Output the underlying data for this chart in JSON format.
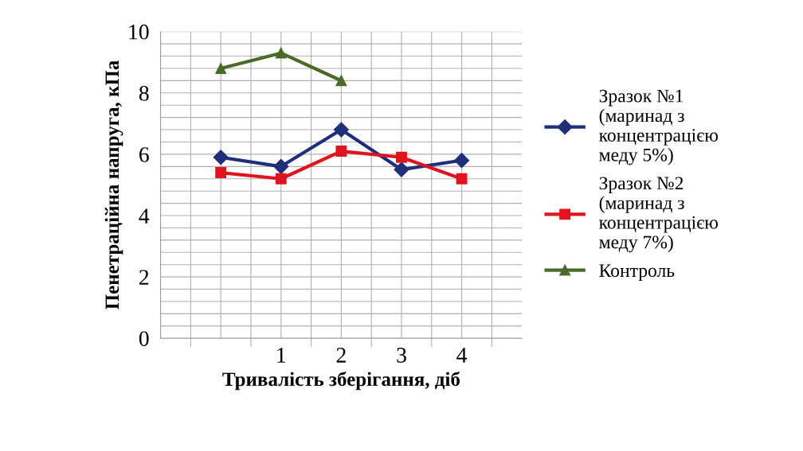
{
  "chart_data": {
    "type": "line",
    "xlabel": "Тривалість зберігання, діб",
    "ylabel": "Пенетраційна напруга, кПа",
    "categories": [
      null,
      "1",
      "2",
      "3",
      "4"
    ],
    "series": [
      {
        "name": "Зразок №1 (маринад з концентрацією меду 5%)",
        "color": "#1f2f7a",
        "marker": "diamond",
        "values": [
          5.9,
          5.6,
          6.8,
          5.5,
          5.8
        ]
      },
      {
        "name": "Зразок №2 (маринад з концентрацією меду 7%)",
        "color": "#e0141e",
        "marker": "square",
        "values": [
          5.4,
          5.2,
          6.1,
          5.9,
          5.2
        ]
      },
      {
        "name": "Контроль",
        "color": "#4a6a2a",
        "marker": "triangle",
        "values": [
          8.8,
          9.3,
          8.4,
          null,
          null
        ]
      }
    ],
    "ylim": [
      0,
      10
    ],
    "yticks": [
      0,
      {
        "value": 0.4,
        "label": null
      },
      {
        "value": 0.8,
        "label": null
      },
      {
        "value": 1.2,
        "label": null
      },
      {
        "value": 1.6,
        "label": null
      },
      2,
      {
        "value": 2.4,
        "label": null
      },
      {
        "value": 2.8,
        "label": null
      },
      {
        "value": 3.2,
        "label": null
      },
      {
        "value": 3.6,
        "label": null
      },
      4,
      {
        "value": 4.4,
        "label": null
      },
      {
        "value": 4.8,
        "label": null
      },
      {
        "value": 5.2,
        "label": null
      },
      {
        "value": 5.6,
        "label": null
      },
      6,
      {
        "value": 6.4,
        "label": null
      },
      {
        "value": 6.8,
        "label": null
      },
      {
        "value": 7.2,
        "label": null
      },
      {
        "value": 7.6,
        "label": null
      },
      8,
      {
        "value": 8.4,
        "label": null
      },
      {
        "value": 8.8,
        "label": null
      },
      {
        "value": 9.2,
        "label": null
      },
      {
        "value": 9.6,
        "label": null
      },
      10
    ],
    "grid": true,
    "legend": "right",
    "line_style": "solid"
  }
}
